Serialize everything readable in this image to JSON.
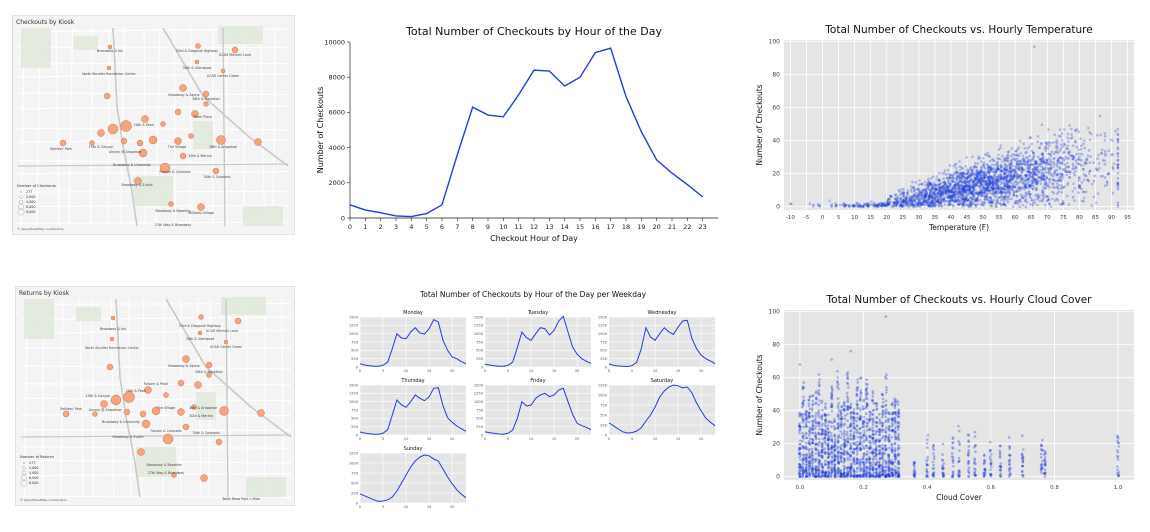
{
  "maps": [
    {
      "title": "Checkouts by Kiosk",
      "legend_title": "Number of Checkouts",
      "legend_values": [
        "277",
        "2,000",
        "4,000",
        "6,000",
        "8,000"
      ],
      "attribution": "© OpenStreetMap contributors",
      "kiosk_labels": [
        "Broadway & Iris",
        "33rd & Diagonal Highway",
        "UCAR Mitchell Lane",
        "30th & Glenwood",
        "UCAR Center Green",
        "North Boulder Recreation Center",
        "Broadway & Alpine",
        "28th & Mapleton",
        "Pearl Place",
        "20th & Pearl",
        "15th & Canyon",
        "Settlers' Park",
        "Library @ Arapahoe",
        "The Village",
        "38th & Arapahoe",
        "30th & Marine",
        "Broadway & University",
        "Folsom & Colorado",
        "30th & Colorado",
        "Broadway & Euclid",
        "Broadway & Baseline",
        "Williams Village",
        "27th Way & Broadway"
      ]
    },
    {
      "title": "Returns by Kiosk",
      "legend_title": "Number of Returns",
      "legend_values": [
        "277",
        "2,000",
        "4,000",
        "6,000",
        "8,000"
      ],
      "attribution": "© OpenStreetMap contributors",
      "kiosk_labels": [
        "Broadway & Iris",
        "33rd & Diagonal Highway",
        "UCAR Mitchell Lane",
        "30th & Glenwood",
        "UCAR Center Green",
        "North Boulder Recreation Center",
        "Broadway & Alpine",
        "28th & Mapleton",
        "Folsom & Pearl",
        "20th & Pearl",
        "15th & Canyon",
        "Settlers' Park",
        "Library @ Arapahoe",
        "The Village",
        "38th & Arapahoe",
        "30th & Marine",
        "Broadway & University",
        "Folsom & Colorado",
        "30th & Colorado",
        "Broadway & Euclid",
        "Broadway & Baseline",
        "27th Way & Broadway",
        "Table Mesa Park n Ride"
      ]
    }
  ],
  "colors": {
    "line": "#1f3fd9",
    "scatter": "#1f3fd9",
    "plot_bg": "#e5e5e5",
    "grid": "#ffffff",
    "bubble": "#f2a57f",
    "bubble_stroke": "#c2603a"
  },
  "chart_data": [
    {
      "type": "line",
      "title": "Total Number of Checkouts by Hour of the Day",
      "xlabel": "Checkout Hour of Day",
      "ylabel": "Number of Checkouts",
      "xlim": [
        0,
        24
      ],
      "ylim": [
        0,
        10000
      ],
      "x": [
        0,
        1,
        2,
        3,
        4,
        5,
        6,
        7,
        8,
        9,
        10,
        11,
        12,
        13,
        14,
        15,
        16,
        17,
        18,
        19,
        20,
        21,
        22,
        23
      ],
      "xticks": [
        0,
        1,
        2,
        3,
        4,
        5,
        6,
        7,
        8,
        9,
        10,
        11,
        12,
        13,
        14,
        15,
        16,
        17,
        18,
        19,
        20,
        21,
        22,
        23
      ],
      "yticks": [
        0,
        2000,
        4000,
        6000,
        8000,
        10000
      ],
      "values": [
        750,
        450,
        300,
        120,
        80,
        250,
        750,
        3600,
        6300,
        5850,
        5750,
        7000,
        8400,
        8350,
        7500,
        8000,
        9400,
        9650,
        6900,
        4900,
        3300,
        2550,
        1900,
        1200
      ]
    },
    {
      "type": "scatter",
      "title": "Total Number of Checkouts vs. Hourly Temperature",
      "xlabel": "Temperature (F)",
      "ylabel": "Number of Checkouts",
      "xlim": [
        -12,
        97
      ],
      "ylim": [
        -2,
        101
      ],
      "xticks": [
        -10,
        -5,
        0,
        5,
        10,
        15,
        20,
        25,
        30,
        35,
        40,
        45,
        50,
        55,
        60,
        65,
        70,
        75,
        80,
        85,
        90,
        95
      ],
      "yticks": [
        0,
        20,
        40,
        60,
        80,
        100
      ]
    },
    {
      "type": "line",
      "title": "Total Number of Checkouts by Hour of the Day per Weekday",
      "panels": [
        {
          "name": "Monday",
          "ylim": [
            0,
            1500
          ],
          "yticks": [
            0,
            250,
            500,
            750,
            1000,
            1250,
            1500
          ],
          "values": [
            100,
            60,
            40,
            20,
            20,
            50,
            150,
            550,
            1000,
            870,
            850,
            1050,
            1180,
            1020,
            990,
            1150,
            1420,
            1350,
            800,
            500,
            300,
            250,
            160,
            100
          ]
        },
        {
          "name": "Tuesday",
          "ylim": [
            0,
            1500
          ],
          "yticks": [
            0,
            250,
            500,
            750,
            1000,
            1250,
            1500
          ],
          "values": [
            80,
            60,
            40,
            20,
            20,
            50,
            150,
            580,
            1050,
            880,
            800,
            1000,
            1180,
            1150,
            960,
            1100,
            1380,
            1520,
            1050,
            600,
            380,
            250,
            170,
            110
          ]
        },
        {
          "name": "Wednesday",
          "ylim": [
            0,
            1500
          ],
          "yticks": [
            0,
            250,
            500,
            750,
            1000,
            1250,
            1500
          ],
          "values": [
            90,
            50,
            30,
            20,
            15,
            40,
            140,
            550,
            1180,
            900,
            800,
            1000,
            1180,
            1050,
            980,
            1200,
            1380,
            1400,
            850,
            550,
            350,
            250,
            180,
            100
          ]
        },
        {
          "name": "Thursday",
          "ylim": [
            0,
            1500
          ],
          "yticks": [
            0,
            250,
            500,
            750,
            1000,
            1250,
            1500
          ],
          "values": [
            90,
            60,
            40,
            20,
            20,
            50,
            160,
            600,
            1050,
            900,
            830,
            1000,
            1200,
            1100,
            1030,
            1150,
            1400,
            1420,
            880,
            520,
            380,
            270,
            190,
            110
          ]
        },
        {
          "name": "Friday",
          "ylim": [
            0,
            1500
          ],
          "yticks": [
            0,
            250,
            500,
            750,
            1000,
            1250,
            1500
          ],
          "values": [
            100,
            70,
            50,
            30,
            20,
            50,
            150,
            500,
            1000,
            870,
            900,
            1100,
            1200,
            1250,
            1150,
            1200,
            1350,
            1400,
            1000,
            620,
            350,
            280,
            230,
            160
          ]
        },
        {
          "name": "Saturday",
          "ylim": [
            0,
            1250
          ],
          "yticks": [
            0,
            250,
            500,
            750,
            1000,
            1250
          ],
          "values": [
            300,
            230,
            150,
            80,
            50,
            60,
            100,
            180,
            350,
            500,
            700,
            950,
            1100,
            1200,
            1250,
            1230,
            1180,
            1200,
            1050,
            800,
            600,
            420,
            320,
            230
          ]
        },
        {
          "name": "Sunday",
          "ylim": [
            0,
            1250
          ],
          "yticks": [
            0,
            250,
            500,
            750,
            1000,
            1250
          ],
          "values": [
            230,
            180,
            130,
            80,
            40,
            50,
            80,
            150,
            300,
            500,
            700,
            900,
            1050,
            1150,
            1200,
            1180,
            1100,
            1050,
            850,
            650,
            480,
            330,
            220,
            130
          ]
        }
      ],
      "xlim": [
        0,
        23
      ],
      "xticks": [
        0,
        5,
        10,
        15,
        20
      ]
    },
    {
      "type": "scatter",
      "title": "Total Number of Checkouts vs. Hourly Cloud Cover",
      "xlabel": "Cloud Cover",
      "ylabel": "Number of Checkouts",
      "xlim": [
        -0.05,
        1.05
      ],
      "ylim": [
        -2,
        101
      ],
      "xticks": [
        0.0,
        0.2,
        0.4,
        0.6,
        0.8,
        1.0
      ],
      "xtick_labels": [
        "0.0",
        "0.2",
        "0.4",
        "0.6",
        "0.8",
        "1.0"
      ],
      "yticks": [
        0,
        20,
        40,
        60,
        80,
        100
      ]
    }
  ]
}
